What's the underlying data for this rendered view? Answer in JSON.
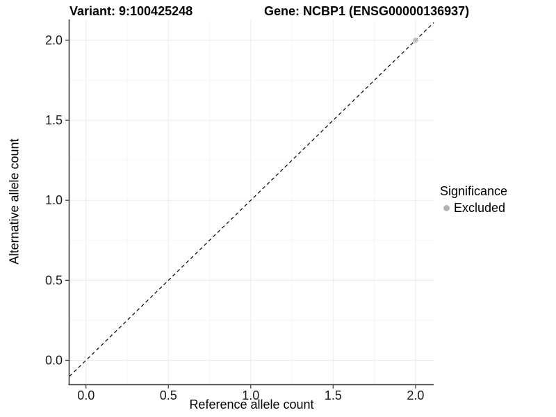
{
  "chart_data": {
    "type": "scatter",
    "title_left": "Variant: 9:100425248",
    "title_right": "Gene: NCBP1 (ENSG00000136937)",
    "xlabel": "Reference allele count",
    "ylabel": "Alternative allele count",
    "xlim": [
      -0.1,
      2.11
    ],
    "ylim": [
      -0.15,
      2.13
    ],
    "xticks": [
      0,
      0.5,
      1,
      1.5,
      2
    ],
    "xtick_labels": [
      "0.0",
      "0.5",
      "1.0",
      "1.5",
      "2.0"
    ],
    "yticks": [
      0,
      0.5,
      1,
      1.5,
      2
    ],
    "ytick_labels": [
      "0.0",
      "0.5",
      "1.0",
      "1.5",
      "2.0"
    ],
    "x_minor": [
      0.25,
      0.75,
      1.25,
      1.75
    ],
    "y_minor": [
      0.25,
      0.75,
      1.25,
      1.75
    ],
    "grid": true,
    "identity_line": {
      "type": "dashed",
      "slope": 1,
      "intercept": 0,
      "color": "#000000"
    },
    "series": [
      {
        "name": "Excluded",
        "color": "#bdbdbd",
        "points": [
          {
            "x": 2,
            "y": 2
          }
        ]
      }
    ],
    "legend": {
      "title": "Significance",
      "position": "right",
      "items": [
        {
          "label": "Excluded",
          "color": "#b3b3b3"
        }
      ]
    },
    "colors": {
      "background": "#ffffff",
      "grid_major": "#ebebeb",
      "grid_minor": "#f6f6f6",
      "axis": "#3d3d3d",
      "tick_label": "#1a1a1a",
      "point": "#bdbdbd",
      "legend_key": "#b3b3b3"
    }
  }
}
